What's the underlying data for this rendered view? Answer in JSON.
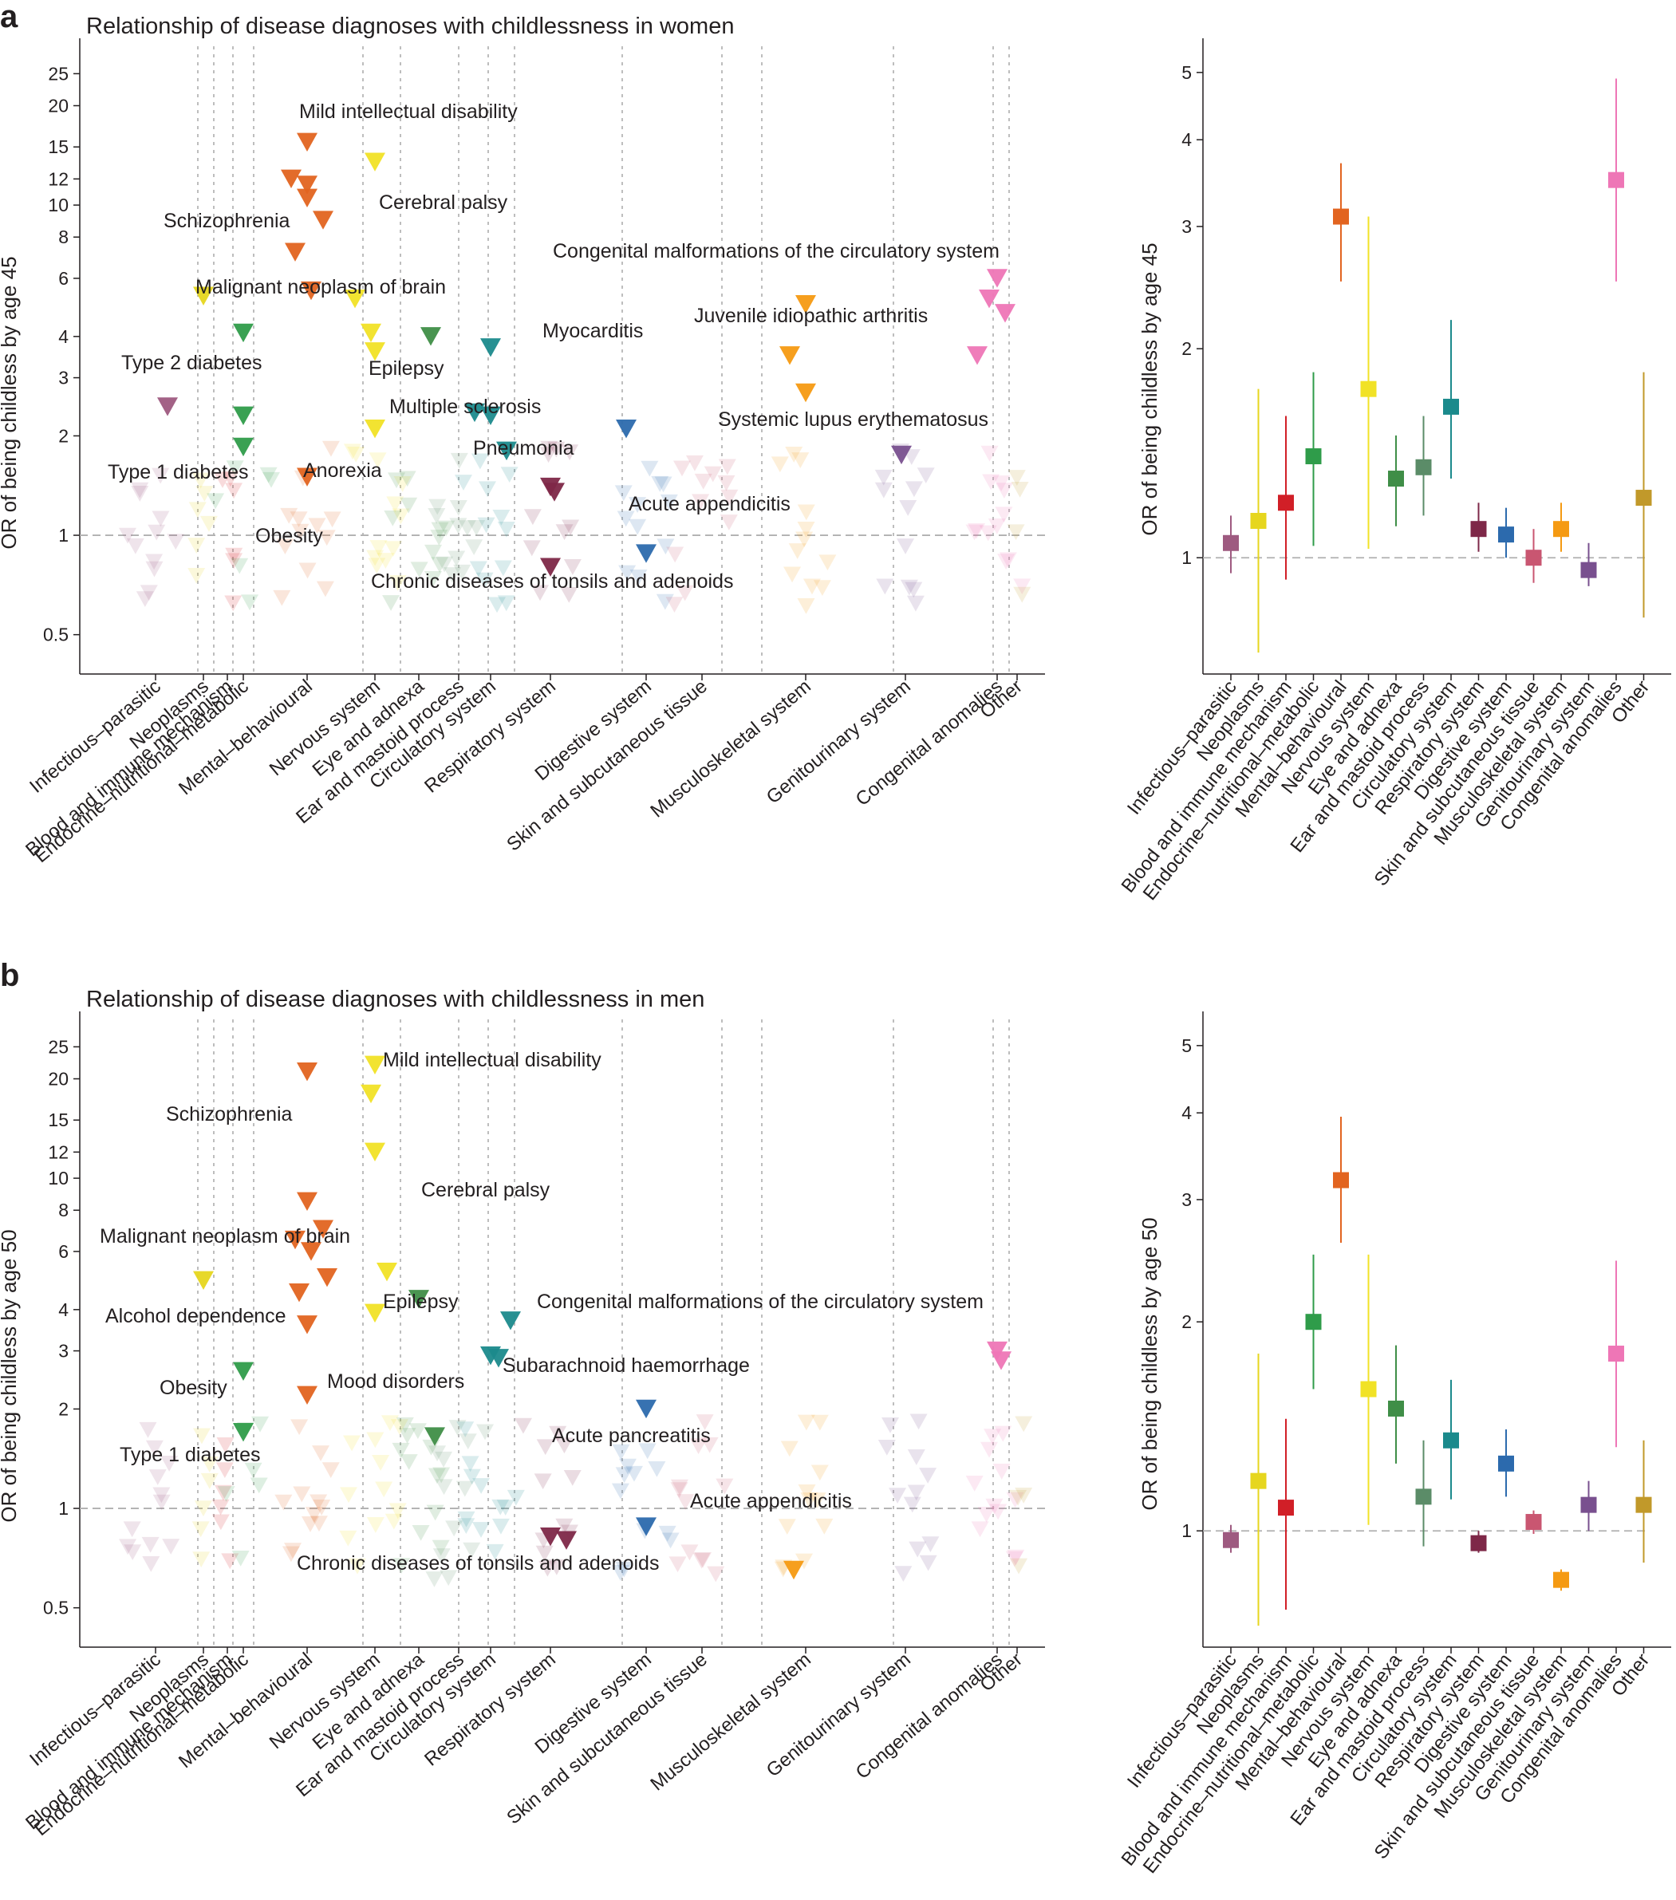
{
  "categories": [
    "Infectious–parasitic",
    "Neoplasms",
    "Blood and immune mechanism",
    "Endocrine–nutritional–metabolic",
    "Mental–behavioural",
    "Nervous system",
    "Eye and adnexa",
    "Ear and mastoid process",
    "Circulatory system",
    "Respiratory system",
    "Digestive system",
    "Skin and subcutaneous tissue",
    "Musculoskeletal system",
    "Genitourinary system",
    "Congenital anomalies",
    "Other"
  ],
  "colors": [
    "#9e5a80",
    "#e6d61e",
    "#d11f27",
    "#2f9c4a",
    "#e26420",
    "#f1e226",
    "#3f8e47",
    "#5b8c68",
    "#1b8a8c",
    "#7e2848",
    "#9a4e1f",
    "#2c6aad",
    "#c95671",
    "#f59a12",
    "#79508f",
    "#ee76b6",
    "#c1992a"
  ],
  "panels": [
    {
      "letter": "a",
      "title": "Relationship of disease diagnoses with childlessness in women",
      "ylabel": "OR of being childless by age 45",
      "ylabel_right": "OR of being childless by age 45",
      "yticks": [
        0.5,
        1,
        2,
        3,
        4,
        6,
        8,
        10,
        12,
        15,
        20,
        25
      ],
      "yticks_right": [
        1,
        2,
        3,
        4,
        5
      ],
      "annotations": [
        {
          "text": "Mild intellectual disability"
        },
        {
          "text": "Cerebral palsy"
        },
        {
          "text": "Schizophrenia"
        },
        {
          "text": "Congenital malformations of the circulatory system"
        },
        {
          "text": "Malignant neoplasm of brain"
        },
        {
          "text": "Juvenile idiopathic arthritis"
        },
        {
          "text": "Myocarditis"
        },
        {
          "text": "Type 2 diabetes"
        },
        {
          "text": "Epilepsy"
        },
        {
          "text": "Multiple sclerosis"
        },
        {
          "text": "Systemic lupus erythematosus"
        },
        {
          "text": "Pneumonia"
        },
        {
          "text": "Type 1 diabetes"
        },
        {
          "text": "Anorexia"
        },
        {
          "text": "Acute appendicitis"
        },
        {
          "text": "Obesity"
        },
        {
          "text": "Chronic diseases of tonsils and adenoids"
        }
      ]
    },
    {
      "letter": "b",
      "title": "Relationship of disease diagnoses with childlessness in men",
      "ylabel": "OR of being childless by age 50",
      "ylabel_right": "OR of being childless by age 50",
      "yticks": [
        0.5,
        1,
        2,
        3,
        4,
        6,
        8,
        10,
        12,
        15,
        20,
        25
      ],
      "yticks_right": [
        1,
        2,
        3,
        4,
        5
      ],
      "annotations": [
        {
          "text": "Mild intellectual disability"
        },
        {
          "text": "Schizophrenia"
        },
        {
          "text": "Cerebral palsy"
        },
        {
          "text": "Malignant neoplasm of brain"
        },
        {
          "text": "Epilepsy"
        },
        {
          "text": "Congenital malformations of the circulatory system"
        },
        {
          "text": "Alcohol dependence"
        },
        {
          "text": "Subarachnoid haemorrhage"
        },
        {
          "text": "Obesity"
        },
        {
          "text": "Mood disorders"
        },
        {
          "text": "Acute pancreatitis"
        },
        {
          "text": "Type 1 diabetes"
        },
        {
          "text": "Acute appendicitis"
        },
        {
          "text": "Chronic diseases of tonsils and adenoids"
        }
      ]
    }
  ],
  "chart_data": [
    {
      "type": "scatter",
      "title": "Relationship of disease diagnoses with childlessness in women",
      "ylabel": "OR of being childless by age 45",
      "yscale": "log",
      "ylim": [
        0.38,
        32
      ],
      "grid": false,
      "reference_line": 1,
      "points": [
        {
          "category": "Mental–behavioural",
          "y": 15.5,
          "label": "Mild intellectual disability"
        },
        {
          "category": "Nervous system",
          "y": 13.5,
          "label": "Cerebral palsy"
        },
        {
          "category": "Mental–behavioural",
          "y": 10.5,
          "label": "Schizophrenia"
        },
        {
          "category": "Mental–behavioural",
          "y": 12.0
        },
        {
          "category": "Mental–behavioural",
          "y": 11.5
        },
        {
          "category": "Mental–behavioural",
          "y": 9.0
        },
        {
          "category": "Mental–behavioural",
          "y": 7.2
        },
        {
          "category": "Mental–behavioural",
          "y": 5.5
        },
        {
          "category": "Congenital anomalies",
          "y": 6.0,
          "label": "Congenital malformations of the circulatory system"
        },
        {
          "category": "Congenital anomalies",
          "y": 5.2
        },
        {
          "category": "Congenital anomalies",
          "y": 4.7
        },
        {
          "category": "Congenital anomalies",
          "y": 3.5
        },
        {
          "category": "Neoplasms",
          "y": 5.3,
          "label": "Malignant neoplasm of brain"
        },
        {
          "category": "Musculoskeletal system",
          "y": 5.0,
          "label": "Juvenile idiopathic arthritis"
        },
        {
          "category": "Musculoskeletal system",
          "y": 3.5
        },
        {
          "category": "Musculoskeletal system",
          "y": 2.7,
          "label": "Systemic lupus erythematosus"
        },
        {
          "category": "Circulatory system",
          "y": 3.7,
          "label": "Myocarditis"
        },
        {
          "category": "Endocrine–nutritional–metabolic",
          "y": 4.1,
          "label": "Type 2 diabetes"
        },
        {
          "category": "Endocrine–nutritional–metabolic",
          "y": 2.3,
          "label": "Type 1 diabetes"
        },
        {
          "category": "Endocrine–nutritional–metabolic",
          "y": 1.85,
          "label": "Obesity"
        },
        {
          "category": "Nervous system",
          "y": 3.6,
          "label": "Epilepsy"
        },
        {
          "category": "Nervous system",
          "y": 2.1,
          "label": "Multiple sclerosis"
        },
        {
          "category": "Nervous system",
          "y": 5.2
        },
        {
          "category": "Nervous system",
          "y": 4.1
        },
        {
          "category": "Eye and adnexa",
          "y": 4.0
        },
        {
          "category": "Circulatory system",
          "y": 2.35
        },
        {
          "category": "Circulatory system",
          "y": 2.3
        },
        {
          "category": "Circulatory system",
          "y": 1.8
        },
        {
          "category": "Respiratory system",
          "y": 1.4,
          "label": "Pneumonia"
        },
        {
          "category": "Respiratory system",
          "y": 1.35
        },
        {
          "category": "Respiratory system",
          "y": 0.8,
          "label": "Chronic diseases of tonsils and adenoids"
        },
        {
          "category": "Mental–behavioural",
          "y": 1.5,
          "label": "Anorexia"
        },
        {
          "category": "Digestive system",
          "y": 0.88,
          "label": "Acute appendicitis"
        },
        {
          "category": "Digestive system",
          "y": 2.1
        },
        {
          "category": "Genitourinary system",
          "y": 1.75
        },
        {
          "category": "Infectious–parasitic",
          "y": 2.45
        }
      ]
    },
    {
      "type": "scatter",
      "title": "Relationship of disease diagnoses with childlessness in women",
      "ylabel": "OR of being childless by age 45",
      "yscale": "log",
      "ylim": [
        0.68,
        5.6
      ],
      "reference_line": 1,
      "categories": [
        "Infectious–parasitic",
        "Neoplasms",
        "Blood and immune mechanism",
        "Endocrine–nutritional–metabolic",
        "Mental–behavioural",
        "Nervous system",
        "Eye and adnexa",
        "Ear and mastoid process",
        "Circulatory system",
        "Respiratory system",
        "Digestive system",
        "Skin and subcutaneous tissue",
        "Musculoskeletal system",
        "Genitourinary system",
        "Congenital anomalies",
        "Other"
      ],
      "values": [
        1.05,
        1.13,
        1.2,
        1.4,
        3.1,
        1.75,
        1.3,
        1.35,
        1.65,
        1.1,
        1.08,
        1.0,
        1.1,
        0.96,
        3.5,
        1.22
      ],
      "ci_low": [
        0.95,
        0.73,
        0.93,
        1.04,
        2.5,
        1.03,
        1.11,
        1.15,
        1.3,
        1.02,
        1.0,
        0.92,
        1.02,
        0.91,
        2.5,
        0.82
      ],
      "ci_high": [
        1.15,
        1.75,
        1.6,
        1.85,
        3.7,
        3.1,
        1.5,
        1.6,
        2.2,
        1.2,
        1.18,
        1.1,
        1.2,
        1.05,
        4.9,
        1.85
      ]
    },
    {
      "type": "scatter",
      "title": "Relationship of disease diagnoses with childlessness in men",
      "ylabel": "OR of being childless by age 50",
      "yscale": "log",
      "ylim": [
        0.38,
        32
      ],
      "grid": false,
      "reference_line": 1,
      "points": [
        {
          "category": "Nervous system",
          "y": 22.0,
          "label": "Mild intellectual disability"
        },
        {
          "category": "Nervous system",
          "y": 18.0
        },
        {
          "category": "Mental–behavioural",
          "y": 21.0,
          "label": "Schizophrenia"
        },
        {
          "category": "Nervous system",
          "y": 12.0,
          "label": "Cerebral palsy"
        },
        {
          "category": "Mental–behavioural",
          "y": 8.5
        },
        {
          "category": "Mental–behavioural",
          "y": 7.0
        },
        {
          "category": "Mental–behavioural",
          "y": 6.5
        },
        {
          "category": "Mental–behavioural",
          "y": 6.0
        },
        {
          "category": "Mental–behavioural",
          "y": 5.0
        },
        {
          "category": "Mental–behavioural",
          "y": 4.5
        },
        {
          "category": "Mental–behavioural",
          "y": 3.6,
          "label": "Alcohol dependence"
        },
        {
          "category": "Mental–behavioural",
          "y": 2.2,
          "label": "Mood disorders"
        },
        {
          "category": "Neoplasms",
          "y": 4.9,
          "label": "Malignant neoplasm of brain"
        },
        {
          "category": "Nervous system",
          "y": 5.2
        },
        {
          "category": "Nervous system",
          "y": 3.9,
          "label": "Epilepsy"
        },
        {
          "category": "Eye and adnexa",
          "y": 4.3
        },
        {
          "category": "Eye and adnexa",
          "y": 1.65
        },
        {
          "category": "Congenital anomalies",
          "y": 3.0,
          "label": "Congenital malformations of the circulatory system"
        },
        {
          "category": "Congenital anomalies",
          "y": 2.8
        },
        {
          "category": "Circulatory system",
          "y": 3.7
        },
        {
          "category": "Circulatory system",
          "y": 2.9,
          "label": "Subarachnoid haemorrhage"
        },
        {
          "category": "Circulatory system",
          "y": 2.85
        },
        {
          "category": "Endocrine–nutritional–metabolic",
          "y": 2.6,
          "label": "Obesity"
        },
        {
          "category": "Endocrine–nutritional–metabolic",
          "y": 1.7,
          "label": "Type 1 diabetes"
        },
        {
          "category": "Digestive system",
          "y": 2.0,
          "label": "Acute pancreatitis"
        },
        {
          "category": "Digestive system",
          "y": 0.88,
          "label": "Acute appendicitis"
        },
        {
          "category": "Respiratory system",
          "y": 0.82,
          "label": "Chronic diseases of tonsils and adenoids"
        },
        {
          "category": "Respiratory system",
          "y": 0.8
        },
        {
          "category": "Musculoskeletal system",
          "y": 0.65
        }
      ]
    },
    {
      "type": "scatter",
      "title": "Relationship of disease diagnoses with childlessness in men",
      "ylabel": "OR of being childless by age 50",
      "yscale": "log",
      "ylim": [
        0.68,
        5.6
      ],
      "reference_line": 1,
      "categories": [
        "Infectious–parasitic",
        "Neoplasms",
        "Blood and immune mechanism",
        "Endocrine–nutritional–metabolic",
        "Mental–behavioural",
        "Nervous system",
        "Eye and adnexa",
        "Ear and mastoid process",
        "Circulatory system",
        "Respiratory system",
        "Digestive system",
        "Skin and subcutaneous tissue",
        "Musculoskeletal system",
        "Genitourinary system",
        "Congenital anomalies",
        "Other"
      ],
      "values": [
        0.97,
        1.18,
        1.08,
        2.0,
        3.2,
        1.6,
        1.5,
        1.12,
        1.35,
        0.96,
        1.25,
        1.03,
        0.85,
        1.09,
        1.8,
        1.09
      ],
      "ci_low": [
        0.93,
        0.73,
        0.77,
        1.6,
        2.6,
        1.02,
        1.25,
        0.95,
        1.11,
        0.93,
        1.12,
        0.99,
        0.82,
        1.0,
        1.32,
        0.9
      ],
      "ci_high": [
        1.02,
        1.8,
        1.45,
        2.5,
        3.95,
        2.5,
        1.85,
        1.35,
        1.65,
        1.0,
        1.4,
        1.07,
        0.88,
        1.18,
        2.45,
        1.35
      ]
    }
  ]
}
